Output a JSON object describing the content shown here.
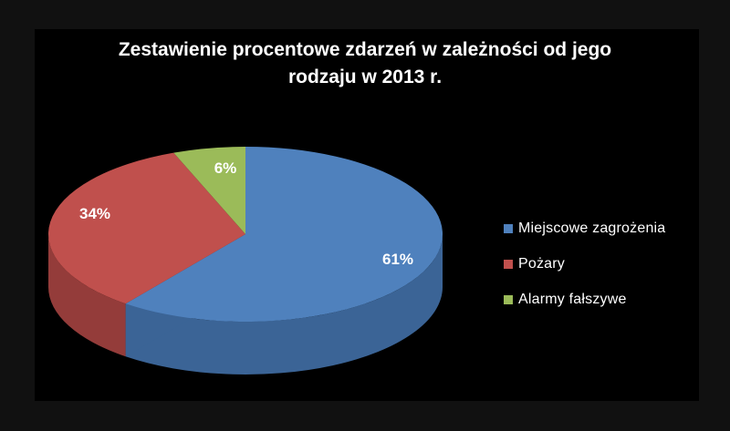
{
  "chart_data": {
    "type": "pie",
    "title_lines": [
      "Zestawienie procentowe zdarzeń  w zależności od jego",
      "rodzaju w 2013 r."
    ],
    "slices": [
      {
        "name": "Miejscowe zagrożenia",
        "value": 61,
        "label": "61%",
        "color": "#4f81bd",
        "side": "#3b6496"
      },
      {
        "name": "Pożary",
        "value": 34,
        "label": "34%",
        "color": "#c0504d",
        "side": "#943c3a"
      },
      {
        "name": "Alarmy fałszywe",
        "value": 6,
        "label": "6%",
        "color": "#9bbb59",
        "side": "#76903f"
      }
    ],
    "legend_position": "right",
    "style": "3d-pie"
  }
}
